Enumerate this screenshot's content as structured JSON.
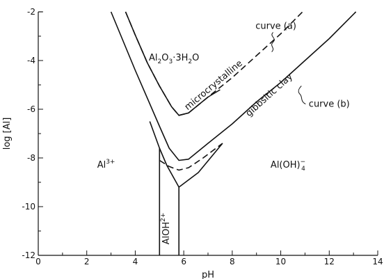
{
  "chart_data": {
    "type": "line",
    "xlabel": "pH",
    "ylabel": "log [Al]",
    "xlim": [
      0,
      14
    ],
    "ylim": [
      -12,
      -2
    ],
    "x_ticks": [
      {
        "value": 0,
        "label": "0"
      },
      {
        "value": 2,
        "label": "2"
      },
      {
        "value": 4,
        "label": "4"
      },
      {
        "value": 6,
        "label": "6"
      },
      {
        "value": 8,
        "label": "8"
      },
      {
        "value": 10,
        "label": "10"
      },
      {
        "value": 12,
        "label": "12"
      },
      {
        "value": 14,
        "label": "14"
      }
    ],
    "y_ticks": [
      {
        "value": -2,
        "label": "-2"
      },
      {
        "value": -4,
        "label": "-4"
      },
      {
        "value": -6,
        "label": "-6"
      },
      {
        "value": -8,
        "label": "-8"
      },
      {
        "value": -10,
        "label": "-10"
      },
      {
        "value": -12,
        "label": "-12"
      }
    ],
    "grid": false,
    "series": [
      {
        "style": "dashed",
        "points": [
          [
            3.6,
            -2.0
          ],
          [
            4.0,
            -2.95
          ],
          [
            4.5,
            -4.1
          ],
          [
            5.0,
            -5.05
          ],
          [
            5.5,
            -5.9
          ],
          [
            5.8,
            -6.25
          ],
          [
            6.2,
            -6.15
          ],
          [
            7.0,
            -5.5
          ],
          [
            8.0,
            -4.7
          ],
          [
            9.0,
            -3.8
          ],
          [
            10.0,
            -2.9
          ],
          [
            10.9,
            -2.0
          ]
        ]
      },
      {
        "style": "solid",
        "points": [
          [
            3.6,
            -2.0
          ],
          [
            4.0,
            -2.95
          ],
          [
            4.5,
            -4.1
          ],
          [
            5.0,
            -5.05
          ],
          [
            5.5,
            -5.9
          ],
          [
            5.8,
            -6.25
          ],
          [
            6.2,
            -6.15
          ],
          [
            7.0,
            -5.5
          ],
          [
            7.5,
            -5.2
          ]
        ]
      },
      {
        "style": "solid",
        "points": [
          [
            3.0,
            -2.0
          ],
          [
            3.5,
            -3.2
          ],
          [
            4.0,
            -4.4
          ],
          [
            4.5,
            -5.55
          ],
          [
            5.0,
            -6.7
          ],
          [
            5.4,
            -7.6
          ],
          [
            5.8,
            -8.1
          ],
          [
            6.2,
            -8.05
          ],
          [
            7.0,
            -7.4
          ],
          [
            8.0,
            -6.6
          ],
          [
            9.0,
            -5.7
          ],
          [
            10.0,
            -4.9
          ],
          [
            11.0,
            -4.0
          ],
          [
            12.0,
            -3.1
          ],
          [
            13.1,
            -2.0
          ]
        ]
      },
      {
        "style": "dashed",
        "points": [
          [
            5.0,
            -8.1
          ],
          [
            5.4,
            -8.35
          ],
          [
            5.8,
            -8.5
          ],
          [
            6.2,
            -8.4
          ],
          [
            6.8,
            -8.0
          ],
          [
            7.6,
            -7.4
          ]
        ]
      },
      {
        "style": "solid",
        "points": [
          [
            4.6,
            -6.5
          ],
          [
            5.0,
            -7.6
          ],
          [
            5.3,
            -8.3
          ],
          [
            5.8,
            -9.2
          ],
          [
            6.6,
            -8.6
          ],
          [
            7.6,
            -7.4
          ]
        ]
      },
      {
        "style": "solid",
        "points": [
          [
            5.0,
            -7.6
          ],
          [
            5.0,
            -12.0
          ]
        ]
      },
      {
        "style": "solid",
        "points": [
          [
            5.8,
            -9.2
          ],
          [
            5.8,
            -12.0
          ]
        ]
      }
    ],
    "annotations": [
      {
        "text": "Al2O3·3H2O",
        "x": 5.6,
        "y": -4.0
      },
      {
        "text": "microcrystalline",
        "x": 7.3,
        "y": -5.1
      },
      {
        "text": "gibbsitic clay",
        "x": 9.6,
        "y": -5.5
      },
      {
        "text": "curve (a)",
        "x": 9.8,
        "y": -2.7
      },
      {
        "text": "curve (b)",
        "x": 12.0,
        "y": -5.9
      },
      {
        "text": "Al3+",
        "x": 2.8,
        "y": -8.4
      },
      {
        "text": "Al(OH)4−",
        "x": 10.3,
        "y": -8.4
      },
      {
        "text": "AlOH2+",
        "x": 5.4,
        "y": -10.9
      }
    ]
  }
}
